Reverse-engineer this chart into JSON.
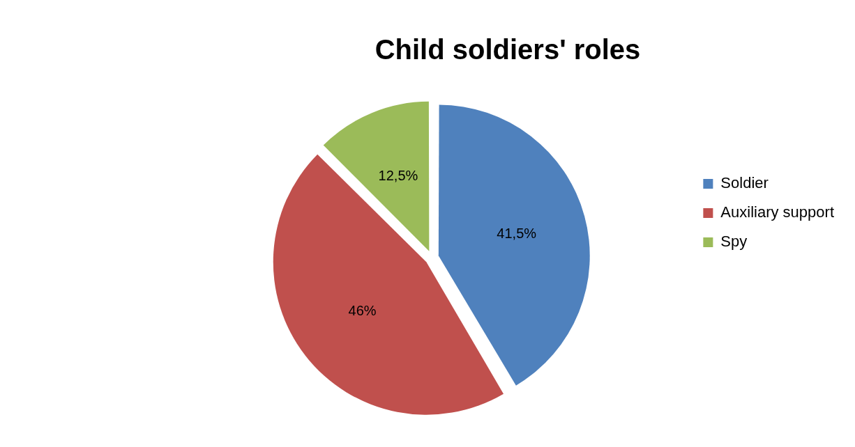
{
  "chart_data": {
    "type": "pie",
    "title": "Child soldiers' roles",
    "categories": [
      "Soldier",
      "Auxiliary support",
      "Spy"
    ],
    "values": [
      41.5,
      46,
      12.5
    ],
    "value_labels": [
      "41,5%",
      "46%",
      "12,5%"
    ],
    "colors": [
      "#4f81bd",
      "#c0504d",
      "#9bbb59"
    ],
    "legend": "right"
  }
}
